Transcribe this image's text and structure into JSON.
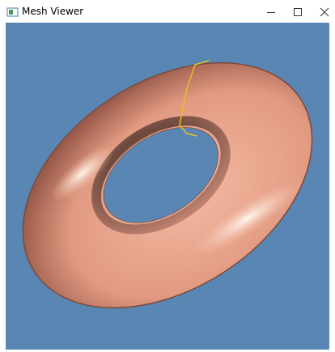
{
  "window": {
    "title": "Mesh Viewer"
  }
}
